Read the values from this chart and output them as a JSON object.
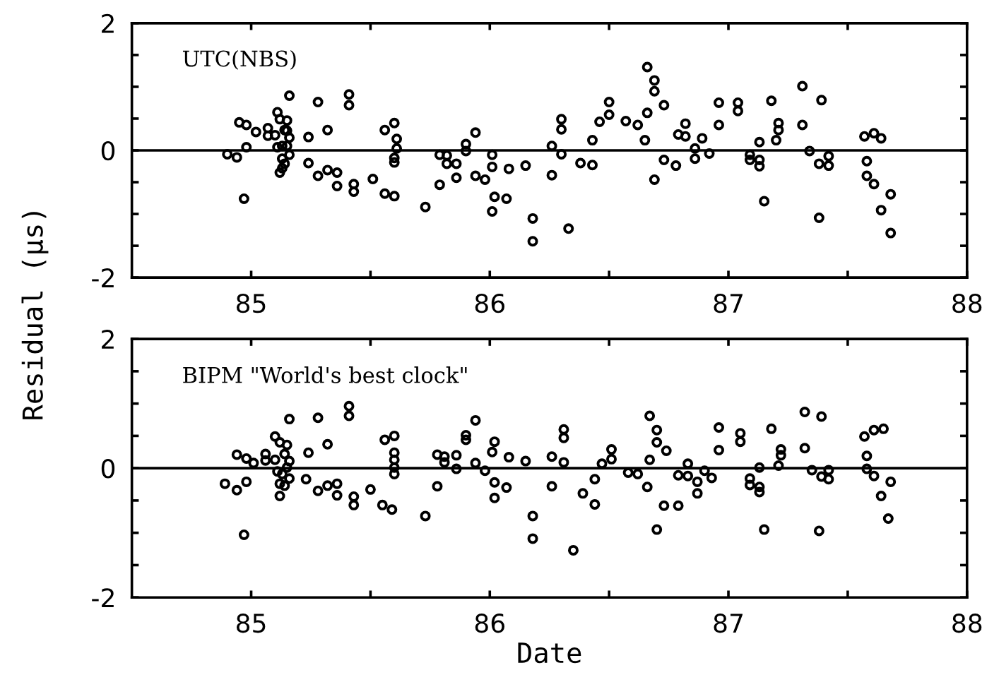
{
  "chart_data": [
    {
      "type": "scatter",
      "ylabel": "Residual (μs)",
      "annotations": [
        "UTC(NBS)"
      ],
      "xlim": [
        84.5,
        88
      ],
      "xticks": [
        85,
        {
          "value": 85.5,
          "label": null
        },
        86,
        {
          "value": 86.5,
          "label": null
        },
        87,
        {
          "value": 87.5,
          "label": null
        },
        88
      ],
      "ylim": [
        -2,
        2
      ],
      "yticks": [
        -2,
        {
          "value": -1.5,
          "label": null
        },
        {
          "value": -1,
          "label": null
        },
        {
          "value": -0.5,
          "label": null
        },
        0,
        {
          "value": 0.5,
          "label": null
        },
        {
          "value": 1,
          "label": null
        },
        {
          "value": 1.5,
          "label": null
        },
        2
      ],
      "ref_lines": [
        {
          "axis": "y",
          "value": 0,
          "color": "#000000"
        }
      ],
      "marker": "circle",
      "grid": false,
      "legend": false,
      "series": [
        {
          "color": "#000000",
          "x": [
            84.9,
            84.94,
            84.95,
            84.98,
            84.98,
            84.97,
            85.02,
            85.07,
            85.07,
            85.11,
            85.1,
            85.12,
            85.15,
            85.14,
            85.15,
            85.16,
            85.11,
            85.13,
            85.15,
            85.16,
            85.13,
            85.14,
            85.13,
            85.12,
            85.16,
            85.24,
            85.24,
            85.28,
            85.32,
            85.28,
            85.32,
            85.36,
            85.36,
            85.41,
            85.41,
            85.43,
            85.43,
            85.51,
            85.56,
            85.6,
            85.61,
            85.61,
            85.6,
            85.6,
            85.56,
            85.6,
            85.73,
            85.79,
            85.82,
            85.79,
            85.82,
            85.86,
            85.86,
            85.9,
            85.9,
            85.94,
            85.94,
            85.98,
            86.01,
            86.01,
            86.02,
            86.01,
            86.07,
            86.08,
            86.15,
            86.18,
            86.18,
            86.26,
            86.26,
            86.3,
            86.3,
            86.3,
            86.33,
            86.38,
            86.43,
            86.43,
            86.46,
            86.5,
            86.5,
            86.57,
            86.62,
            86.66,
            86.66,
            86.65,
            86.69,
            86.69,
            86.69,
            86.73,
            86.73,
            86.78,
            86.79,
            86.82,
            86.82,
            86.86,
            86.86,
            86.89,
            86.92,
            86.96,
            86.96,
            87.04,
            87.04,
            87.09,
            87.09,
            87.13,
            87.13,
            87.13,
            87.15,
            87.18,
            87.21,
            87.21,
            87.2,
            87.31,
            87.31,
            87.34,
            87.39,
            87.38,
            87.42,
            87.42,
            87.38,
            87.57,
            87.61,
            87.64,
            87.58,
            87.58,
            87.61,
            87.68,
            87.64,
            87.68
          ],
          "values": [
            -0.06,
            -0.11,
            0.44,
            0.4,
            0.05,
            -0.76,
            0.29,
            0.35,
            0.23,
            0.6,
            0.24,
            0.49,
            0.47,
            0.32,
            0.31,
            0.2,
            0.05,
            0.07,
            0.07,
            -0.07,
            -0.13,
            -0.21,
            -0.28,
            -0.35,
            0.86,
            0.21,
            -0.2,
            0.76,
            0.32,
            -0.4,
            -0.31,
            -0.35,
            -0.56,
            0.88,
            0.71,
            -0.53,
            -0.65,
            -0.45,
            0.32,
            0.43,
            0.18,
            0.03,
            -0.12,
            -0.19,
            -0.68,
            -0.72,
            -0.89,
            -0.07,
            -0.08,
            -0.54,
            -0.21,
            -0.21,
            -0.43,
            0.1,
            -0.01,
            0.28,
            -0.4,
            -0.46,
            -0.07,
            -0.26,
            -0.73,
            -0.96,
            -0.76,
            -0.29,
            -0.24,
            -1.07,
            -1.43,
            0.07,
            -0.39,
            0.49,
            0.33,
            -0.06,
            -1.23,
            -0.2,
            -0.23,
            0.16,
            0.45,
            0.76,
            0.56,
            0.46,
            0.4,
            1.31,
            0.59,
            0.16,
            1.1,
            0.93,
            -0.46,
            0.71,
            -0.15,
            -0.24,
            0.25,
            0.42,
            0.22,
            0.03,
            -0.13,
            0.19,
            -0.05,
            0.75,
            0.4,
            0.75,
            0.62,
            -0.07,
            -0.15,
            0.13,
            -0.15,
            -0.25,
            -0.8,
            0.78,
            0.43,
            0.32,
            0.16,
            1.01,
            0.4,
            -0.01,
            0.79,
            -0.21,
            -0.09,
            -0.24,
            -1.06,
            0.22,
            0.27,
            0.19,
            -0.17,
            -0.4,
            -0.53,
            -0.69,
            -0.94,
            -1.3
          ]
        }
      ]
    },
    {
      "type": "scatter",
      "xlabel": "Date",
      "annotations": [
        "BIPM \"World's best clock\""
      ],
      "xlim": [
        84.5,
        88
      ],
      "xticks": [
        85,
        {
          "value": 85.5,
          "label": null
        },
        86,
        {
          "value": 86.5,
          "label": null
        },
        87,
        {
          "value": 87.5,
          "label": null
        },
        88
      ],
      "ylim": [
        -2,
        2
      ],
      "yticks": [
        -2,
        {
          "value": -1.5,
          "label": null
        },
        {
          "value": -1,
          "label": null
        },
        {
          "value": -0.5,
          "label": null
        },
        0,
        {
          "value": 0.5,
          "label": null
        },
        {
          "value": 1,
          "label": null
        },
        {
          "value": 1.5,
          "label": null
        },
        2
      ],
      "ref_lines": [
        {
          "axis": "y",
          "value": 0,
          "color": "#000000"
        }
      ],
      "marker": "circle",
      "grid": false,
      "legend": false,
      "series": [
        {
          "color": "#000000",
          "x": [
            84.89,
            84.94,
            84.94,
            84.98,
            84.98,
            84.97,
            85.01,
            85.06,
            85.06,
            85.1,
            85.1,
            85.12,
            85.15,
            85.14,
            85.16,
            85.16,
            85.11,
            85.13,
            85.12,
            85.14,
            85.12,
            85.16,
            85.15,
            85.24,
            85.23,
            85.28,
            85.32,
            85.28,
            85.32,
            85.36,
            85.36,
            85.41,
            85.41,
            85.43,
            85.43,
            85.5,
            85.56,
            85.6,
            85.6,
            85.6,
            85.6,
            85.6,
            85.55,
            85.59,
            85.73,
            85.78,
            85.81,
            85.81,
            85.86,
            85.86,
            85.78,
            85.9,
            85.9,
            85.94,
            85.94,
            85.98,
            86.02,
            86.01,
            86.02,
            86.02,
            86.07,
            86.08,
            86.15,
            86.18,
            86.18,
            86.26,
            86.26,
            86.31,
            86.31,
            86.31,
            86.35,
            86.39,
            86.44,
            86.44,
            86.47,
            86.51,
            86.51,
            86.58,
            86.62,
            86.67,
            86.67,
            86.66,
            86.7,
            86.7,
            86.74,
            86.7,
            86.73,
            86.79,
            86.79,
            86.83,
            86.83,
            86.87,
            86.87,
            86.9,
            86.93,
            86.96,
            86.96,
            87.05,
            87.05,
            87.09,
            87.09,
            87.13,
            87.13,
            87.13,
            87.15,
            87.18,
            87.22,
            87.22,
            87.21,
            87.32,
            87.32,
            87.35,
            87.39,
            87.39,
            87.42,
            87.42,
            87.38,
            87.57,
            87.58,
            87.58,
            87.61,
            87.65,
            87.61,
            87.64,
            87.68,
            87.67
          ],
          "values": [
            -0.24,
            -0.34,
            0.21,
            0.15,
            -0.21,
            -1.03,
            0.08,
            0.22,
            0.12,
            0.13,
            0.49,
            0.4,
            0.36,
            0.22,
            0.11,
            0.76,
            -0.05,
            -0.09,
            -0.24,
            -0.27,
            -0.43,
            -0.16,
            0.01,
            0.24,
            -0.17,
            0.78,
            0.37,
            -0.35,
            -0.27,
            -0.24,
            -0.42,
            0.96,
            0.81,
            -0.44,
            -0.57,
            -0.33,
            0.44,
            0.5,
            0.24,
            0.13,
            0.01,
            -0.09,
            -0.57,
            -0.64,
            -0.74,
            0.21,
            0.18,
            0.09,
            0.2,
            -0.01,
            -0.28,
            0.51,
            0.44,
            0.08,
            0.74,
            -0.04,
            0.41,
            0.25,
            -0.22,
            -0.46,
            -0.3,
            0.17,
            0.11,
            -0.74,
            -1.09,
            0.18,
            -0.28,
            0.6,
            0.47,
            0.09,
            -1.27,
            -0.39,
            -0.17,
            -0.56,
            0.07,
            0.29,
            0.14,
            -0.07,
            -0.09,
            0.81,
            0.13,
            -0.29,
            0.59,
            0.4,
            0.27,
            -0.95,
            -0.58,
            -0.58,
            -0.11,
            0.07,
            -0.12,
            -0.21,
            -0.39,
            -0.04,
            -0.15,
            0.63,
            0.28,
            0.54,
            0.41,
            -0.16,
            -0.26,
            -0.29,
            -0.37,
            0.01,
            -0.95,
            0.61,
            0.29,
            0.2,
            0.04,
            0.87,
            0.31,
            -0.03,
            0.8,
            -0.13,
            -0.17,
            -0.03,
            -0.97,
            0.49,
            0.19,
            -0.01,
            0.59,
            0.61,
            -0.12,
            -0.43,
            -0.21,
            -0.78
          ]
        }
      ]
    }
  ]
}
